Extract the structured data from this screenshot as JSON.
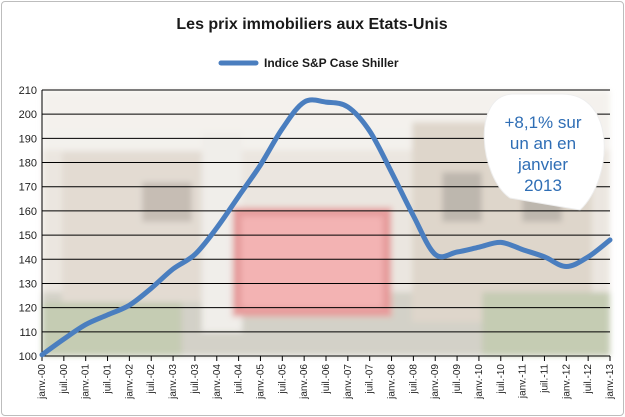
{
  "chart_data": {
    "type": "line",
    "title": "Les prix immobiliers aux Etats-Unis",
    "xlabel": "",
    "ylabel": "",
    "ylim": [
      100,
      210
    ],
    "yticks": [
      100,
      110,
      120,
      130,
      140,
      150,
      160,
      170,
      180,
      190,
      200,
      210
    ],
    "grid": true,
    "legend_position": "top-center",
    "series_color": "#4a7ebf",
    "categories": [
      "janv.-00",
      "juil.-00",
      "janv.-01",
      "juil.-01",
      "janv.-02",
      "juil.-02",
      "janv.-03",
      "juil.-03",
      "janv.-04",
      "juil.-04",
      "janv.-05",
      "juil.-05",
      "janv.-06",
      "juil.-06",
      "janv.-07",
      "juil.-07",
      "janv.-08",
      "juil.-08",
      "janv.-09",
      "juil.-09",
      "janv.-10",
      "juil.-10",
      "janv.-11",
      "juil.-11",
      "janv.-12",
      "juil.-12",
      "janv.-13"
    ],
    "series": [
      {
        "name": "Indice S&P Case Shiller",
        "values": [
          100.5,
          107,
          113,
          117,
          121,
          128,
          136,
          142,
          153,
          166,
          179,
          194,
          205,
          205,
          203,
          193,
          176,
          158,
          142,
          143,
          145,
          147,
          144,
          141,
          137,
          141,
          148
        ]
      }
    ],
    "annotation": {
      "lines": [
        "+8,1% sur",
        "un an en",
        "janvier",
        "2013"
      ]
    }
  }
}
